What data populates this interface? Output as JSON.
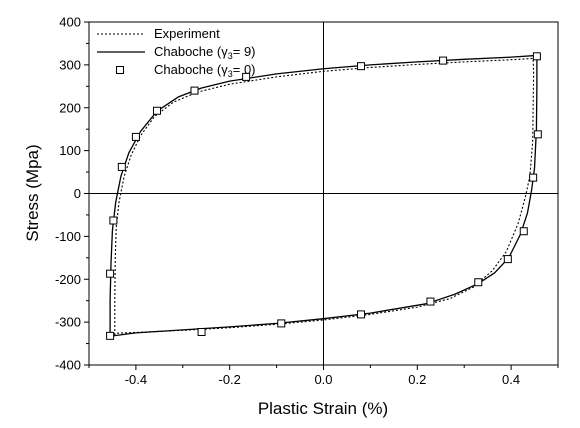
{
  "chart_data": {
    "type": "line",
    "xlabel": "Plastic Strain (%)",
    "ylabel": "Stress (Mpa)",
    "xlim": [
      -0.5,
      0.5
    ],
    "ylim": [
      -400,
      400
    ],
    "xticks": [
      -0.4,
      -0.2,
      0.0,
      0.2,
      0.4
    ],
    "xtick_labels": [
      "-0.4",
      "-0.2",
      "0.0",
      "0.2",
      "0.4"
    ],
    "yticks": [
      -400,
      -300,
      -200,
      -100,
      0,
      100,
      200,
      300,
      400
    ],
    "ytick_labels": [
      "-400",
      "-300",
      "-200",
      "-100",
      "0",
      "100",
      "200",
      "300",
      "400"
    ],
    "grid": false,
    "zero_lines": true,
    "legend": {
      "position": "top-left",
      "items": [
        {
          "label": "Experiment",
          "style": "dotted-line"
        },
        {
          "label": "Chaboche (",
          "gamma_label": "γ",
          "subscript": "3",
          "suffix": "= 9)",
          "style": "solid-line"
        },
        {
          "label": "Chaboche (",
          "gamma_label": "γ",
          "subscript": "3",
          "suffix": "= 0)",
          "style": "square-marker"
        }
      ]
    },
    "series": [
      {
        "name": "Experiment",
        "style": "dotted",
        "color": "#000000",
        "points": [
          [
            -0.445,
            -330
          ],
          [
            -0.445,
            -250
          ],
          [
            -0.444,
            -150
          ],
          [
            -0.442,
            -80
          ],
          [
            -0.436,
            -20
          ],
          [
            -0.425,
            40
          ],
          [
            -0.41,
            90
          ],
          [
            -0.39,
            135
          ],
          [
            -0.36,
            180
          ],
          [
            -0.32,
            213
          ],
          [
            -0.27,
            236
          ],
          [
            -0.2,
            255
          ],
          [
            -0.1,
            272
          ],
          [
            0.0,
            285
          ],
          [
            0.1,
            294
          ],
          [
            0.2,
            301
          ],
          [
            0.3,
            307
          ],
          [
            0.4,
            312
          ],
          [
            0.447,
            315
          ],
          [
            0.448,
            280
          ],
          [
            0.447,
            200
          ],
          [
            0.446,
            120
          ],
          [
            0.44,
            40
          ],
          [
            0.43,
            -10
          ],
          [
            0.415,
            -70
          ],
          [
            0.39,
            -135
          ],
          [
            0.36,
            -180
          ],
          [
            0.32,
            -218
          ],
          [
            0.27,
            -245
          ],
          [
            0.2,
            -265
          ],
          [
            0.1,
            -282
          ],
          [
            0.0,
            -295
          ],
          [
            -0.1,
            -305
          ],
          [
            -0.2,
            -313
          ],
          [
            -0.3,
            -319
          ],
          [
            -0.4,
            -324
          ],
          [
            -0.445,
            -326
          ]
        ]
      },
      {
        "name": "Chaboche (γ3= 9)",
        "style": "solid",
        "color": "#000000",
        "points": [
          [
            -0.455,
            -335
          ],
          [
            -0.455,
            -250
          ],
          [
            -0.453,
            -160
          ],
          [
            -0.45,
            -85
          ],
          [
            -0.443,
            -20
          ],
          [
            -0.432,
            40
          ],
          [
            -0.415,
            95
          ],
          [
            -0.39,
            145
          ],
          [
            -0.355,
            192
          ],
          [
            -0.31,
            225
          ],
          [
            -0.26,
            246
          ],
          [
            -0.2,
            262
          ],
          [
            -0.1,
            279
          ],
          [
            0.0,
            291
          ],
          [
            0.1,
            300
          ],
          [
            0.2,
            307
          ],
          [
            0.3,
            313
          ],
          [
            0.4,
            318
          ],
          [
            0.455,
            322
          ],
          [
            0.455,
            250
          ],
          [
            0.454,
            150
          ],
          [
            0.45,
            60
          ],
          [
            0.444,
            10
          ],
          [
            0.435,
            -45
          ],
          [
            0.42,
            -95
          ],
          [
            0.395,
            -150
          ],
          [
            0.365,
            -185
          ],
          [
            0.33,
            -210
          ],
          [
            0.28,
            -235
          ],
          [
            0.22,
            -257
          ],
          [
            0.1,
            -279
          ],
          [
            0.0,
            -292
          ],
          [
            -0.1,
            -303
          ],
          [
            -0.2,
            -311
          ],
          [
            -0.3,
            -318
          ],
          [
            -0.4,
            -325
          ],
          [
            -0.455,
            -333
          ]
        ]
      },
      {
        "name": "Chaboche (γ3= 0)",
        "style": "square-markers",
        "color": "#000000",
        "points": [
          [
            -0.455,
            -332
          ],
          [
            -0.455,
            -187
          ],
          [
            -0.448,
            -63
          ],
          [
            -0.43,
            62
          ],
          [
            -0.4,
            132
          ],
          [
            -0.355,
            193
          ],
          [
            -0.275,
            240
          ],
          [
            -0.165,
            272
          ],
          [
            0.08,
            297
          ],
          [
            0.255,
            310
          ],
          [
            0.455,
            320
          ],
          [
            0.457,
            138
          ],
          [
            0.447,
            37
          ],
          [
            0.427,
            -88
          ],
          [
            0.393,
            -153
          ],
          [
            0.33,
            -207
          ],
          [
            0.228,
            -252
          ],
          [
            0.08,
            -282
          ],
          [
            -0.09,
            -303
          ],
          [
            -0.26,
            -323
          ]
        ]
      }
    ]
  }
}
